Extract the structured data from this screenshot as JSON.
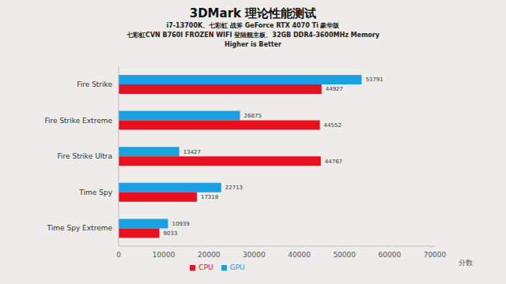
{
  "chart_data": {
    "type": "bar",
    "title": "3DMark 理论性能测试",
    "subtitle": [
      "i7-13700K、七彩虹 战斧 GeForce RTX 4070 Ti 豪华版",
      "七彩虹CVN B760I FROZEN WIFI 登陆舰主板、32GB DDR4-3600MHz Memory",
      "Higher is Better"
    ],
    "x_label": "分数",
    "categories": [
      "Fire Strike",
      "Fire Strike Extreme",
      "Fire Strike Ultra",
      "Time Spy",
      "Time Spy Extreme"
    ],
    "series": [
      {
        "name": "GPU",
        "color": "#1ba1e2",
        "values": [
          53791,
          26875,
          13427,
          22713,
          10939
        ]
      },
      {
        "name": "CPU",
        "color": "#e8101e",
        "values": [
          44927,
          44552,
          44767,
          17318,
          9033
        ]
      }
    ],
    "xlim": [
      0,
      70000
    ],
    "xticks": [
      0,
      10000,
      20000,
      30000,
      40000,
      50000,
      60000,
      70000
    ],
    "orientation": "horizontal",
    "data_labels": true,
    "legend": "bottom",
    "grid": false
  }
}
